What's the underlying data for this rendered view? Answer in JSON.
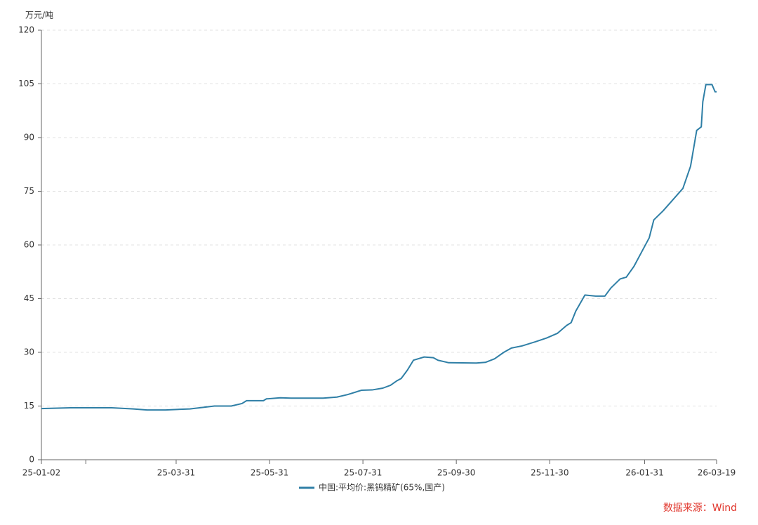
{
  "chart_data": {
    "type": "line",
    "y_axis_label": "万元/吨",
    "source": "数据来源：Wind",
    "x": [
      "2025-01-02",
      "2025-01-21",
      "2025-02-17",
      "2025-03-03",
      "2025-03-12",
      "2025-03-24",
      "2025-04-09",
      "2025-04-25",
      "2025-05-06",
      "2025-05-13",
      "2025-05-16",
      "2025-05-27",
      "2025-05-29",
      "2025-06-07",
      "2025-06-14",
      "2025-07-05",
      "2025-07-14",
      "2025-07-21",
      "2025-07-30",
      "2025-08-06",
      "2025-08-13",
      "2025-08-18",
      "2025-08-22",
      "2025-08-25",
      "2025-08-29",
      "2025-09-02",
      "2025-09-09",
      "2025-09-15",
      "2025-09-18",
      "2025-09-25",
      "2025-10-13",
      "2025-10-19",
      "2025-10-25",
      "2025-10-31",
      "2025-11-05",
      "2025-11-12",
      "2025-11-21",
      "2025-11-28",
      "2025-12-05",
      "2025-12-11",
      "2025-12-14",
      "2025-12-17",
      "2025-12-23",
      "2025-12-30",
      "2026-01-05",
      "2026-01-09",
      "2026-01-15",
      "2026-01-19",
      "2026-01-24",
      "2026-01-29",
      "2026-02-03",
      "2026-02-06",
      "2026-02-12",
      "2026-02-25",
      "2026-03-02",
      "2026-03-06",
      "2026-03-09",
      "2026-03-10",
      "2026-03-12",
      "2026-03-16",
      "2026-03-18",
      "2026-03-19"
    ],
    "series": [
      {
        "name": "中国:平均价:黑钨精矿(65%,国产)",
        "color": "#2f7fa6",
        "values": [
          14.3,
          14.5,
          14.5,
          14.2,
          13.9,
          13.9,
          14.2,
          15.0,
          15.0,
          15.7,
          16.5,
          16.5,
          17.0,
          17.3,
          17.2,
          17.2,
          17.5,
          18.2,
          19.4,
          19.5,
          20.0,
          20.8,
          22.0,
          22.7,
          25.0,
          27.8,
          28.7,
          28.5,
          27.8,
          27.1,
          27.0,
          27.2,
          28.2,
          30.0,
          31.2,
          31.8,
          33.0,
          34.0,
          35.3,
          37.5,
          38.3,
          41.5,
          46.0,
          45.7,
          45.7,
          48.0,
          50.5,
          51.0,
          54.0,
          58.0,
          62.0,
          67.0,
          69.5,
          75.8,
          82.0,
          92.0,
          93.0,
          100.0,
          104.8,
          104.8,
          102.8,
          102.8
        ]
      }
    ],
    "xlim": [
      "2025-01-02",
      "2026-03-19"
    ],
    "xticks": [
      {
        "value": "2025-01-02",
        "label": "25-01-02"
      },
      {
        "value": "2025-01-31",
        "label": null
      },
      {
        "value": "2025-03-31",
        "label": "25-03-31"
      },
      {
        "value": "2025-05-31",
        "label": "25-05-31"
      },
      {
        "value": "2025-07-31",
        "label": "25-07-31"
      },
      {
        "value": "2025-09-30",
        "label": "25-09-30"
      },
      {
        "value": "2025-11-30",
        "label": "25-11-30"
      },
      {
        "value": "2026-01-31",
        "label": "26-01-31"
      },
      {
        "value": "2026-03-19",
        "label": "26-03-19"
      }
    ],
    "ylim": [
      0,
      120
    ],
    "yticks": [
      0,
      15,
      30,
      45,
      60,
      75,
      90,
      105,
      120
    ],
    "grid": true,
    "legend": "bottom"
  }
}
